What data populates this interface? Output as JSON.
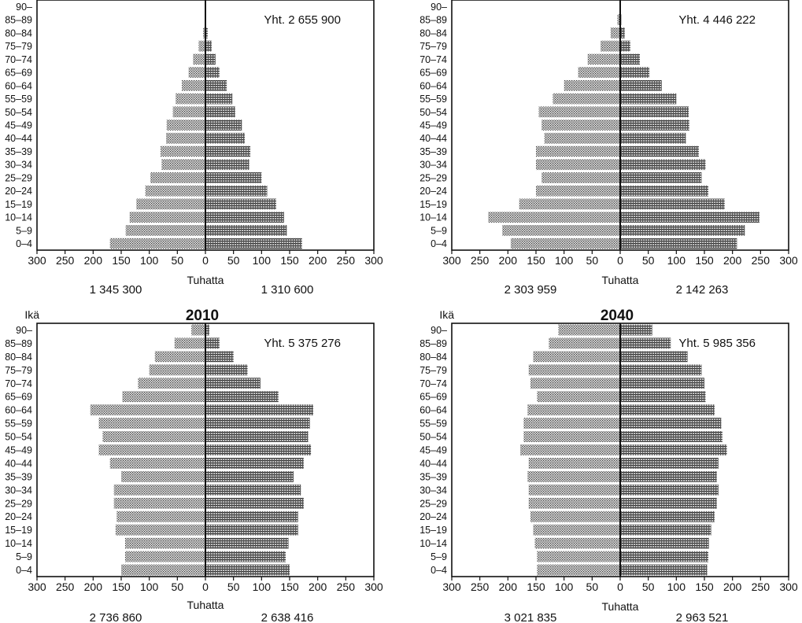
{
  "chart_data": [
    {
      "type": "bar",
      "orientation": "population-pyramid",
      "title": "",
      "age_axis_label": "",
      "xlabel": "Tuhatta",
      "total_label": "Yht. 2 655 900",
      "left_total": "1 345 300",
      "right_total": "1 310 600",
      "xlim": [
        -300,
        300
      ],
      "x_ticks": [
        "300",
        "250",
        "200",
        "150",
        "100",
        "50",
        "0",
        "50",
        "100",
        "150",
        "200",
        "250",
        "300"
      ],
      "categories": [
        "0–4",
        "5–9",
        "10–14",
        "15–19",
        "20–24",
        "25–29",
        "30–34",
        "35–39",
        "40–44",
        "45–49",
        "50–54",
        "55–59",
        "60–64",
        "65–69",
        "70–74",
        "75–79",
        "80–84",
        "85–89",
        "90–"
      ],
      "series": [
        {
          "values": [
            170,
            142,
            135,
            123,
            107,
            98,
            78,
            80,
            70,
            69,
            58,
            53,
            42,
            30,
            22,
            12,
            4,
            0,
            0
          ]
        },
        {
          "values": [
            172,
            145,
            140,
            126,
            110,
            100,
            78,
            80,
            70,
            65,
            53,
            48,
            38,
            25,
            18,
            11,
            4,
            0,
            0
          ]
        }
      ]
    },
    {
      "type": "bar",
      "orientation": "population-pyramid",
      "title": "",
      "age_axis_label": "",
      "xlabel": "Tuhatta",
      "total_label": "Yht. 4 446 222",
      "left_total": "2 303 959",
      "right_total": "2 142 263",
      "xlim": [
        -300,
        300
      ],
      "x_ticks": [
        "300",
        "250",
        "200",
        "150",
        "100",
        "50",
        "0",
        "50",
        "100",
        "150",
        "200",
        "250",
        "300"
      ],
      "categories": [
        "0–4",
        "5–9",
        "10–14",
        "15–19",
        "20–24",
        "25–29",
        "30–34",
        "35–39",
        "40–44",
        "45–49",
        "50–54",
        "55–59",
        "60–64",
        "65–69",
        "70–74",
        "75–79",
        "80–84",
        "85–89",
        "90–"
      ],
      "series": [
        {
          "values": [
            195,
            210,
            235,
            180,
            150,
            140,
            150,
            150,
            135,
            140,
            145,
            120,
            100,
            75,
            58,
            35,
            17,
            5,
            0
          ]
        },
        {
          "values": [
            208,
            222,
            248,
            186,
            157,
            145,
            152,
            140,
            117,
            123,
            122,
            100,
            74,
            52,
            35,
            18,
            8,
            2,
            0
          ]
        }
      ]
    },
    {
      "type": "bar",
      "orientation": "population-pyramid",
      "title": "2010",
      "age_axis_label": "Ikä",
      "xlabel": "Tuhatta",
      "total_label": "Yht. 5 375 276",
      "left_total": "2 736 860",
      "right_total": "2 638 416",
      "xlim": [
        -300,
        300
      ],
      "x_ticks": [
        "300",
        "250",
        "200",
        "150",
        "100",
        "50",
        "0",
        "50",
        "100",
        "150",
        "200",
        "250",
        "300"
      ],
      "categories": [
        "0–4",
        "5–9",
        "10–14",
        "15–19",
        "20–24",
        "25–29",
        "30–34",
        "35–39",
        "40–44",
        "45–49",
        "50–54",
        "55–59",
        "60–64",
        "65–69",
        "70–74",
        "75–79",
        "80–84",
        "85–89",
        "90–"
      ],
      "series": [
        {
          "values": [
            150,
            143,
            143,
            160,
            158,
            163,
            163,
            150,
            170,
            190,
            183,
            190,
            205,
            148,
            120,
            100,
            90,
            55,
            25
          ]
        },
        {
          "values": [
            150,
            143,
            148,
            165,
            165,
            175,
            170,
            157,
            175,
            188,
            183,
            186,
            192,
            130,
            98,
            75,
            50,
            25,
            7
          ]
        }
      ]
    },
    {
      "type": "bar",
      "orientation": "population-pyramid",
      "title": "2040",
      "age_axis_label": "Ikä",
      "xlabel": "Tuhatta",
      "total_label": "Yht. 5 985 356",
      "left_total": "3 021 835",
      "right_total": "2 963 521",
      "xlim": [
        -300,
        300
      ],
      "x_ticks": [
        "300",
        "250",
        "200",
        "150",
        "100",
        "50",
        "0",
        "50",
        "100",
        "150",
        "200",
        "250",
        "300"
      ],
      "categories": [
        "0–4",
        "5–9",
        "10–14",
        "15–19",
        "20–24",
        "25–29",
        "30–34",
        "35–39",
        "40–44",
        "45–49",
        "50–54",
        "55–59",
        "60–64",
        "65–69",
        "70–74",
        "75–79",
        "80–84",
        "85–89",
        "90–"
      ],
      "series": [
        {
          "values": [
            148,
            148,
            152,
            155,
            160,
            163,
            163,
            165,
            163,
            178,
            172,
            172,
            165,
            148,
            160,
            163,
            155,
            127,
            110
          ]
        },
        {
          "values": [
            155,
            157,
            158,
            162,
            168,
            172,
            175,
            172,
            175,
            190,
            182,
            180,
            168,
            152,
            150,
            145,
            120,
            90,
            57
          ]
        }
      ]
    }
  ]
}
